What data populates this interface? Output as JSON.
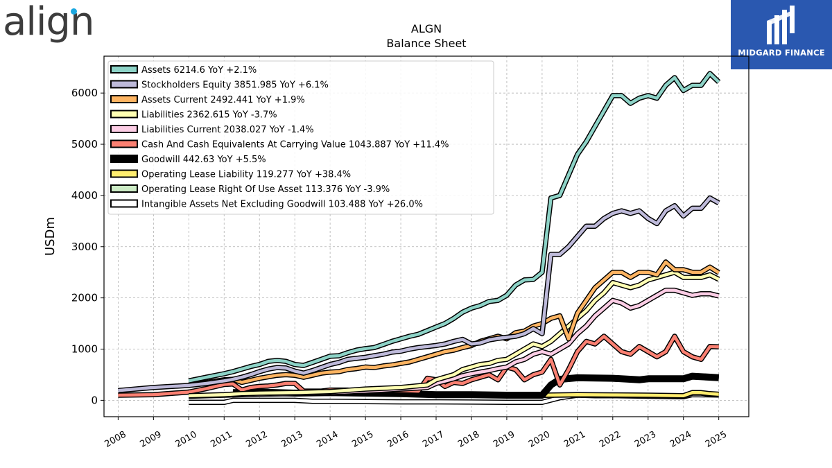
{
  "brand": {
    "logo_text": "align"
  },
  "badge": {
    "text": "MIDGARD FINANCE"
  },
  "chart_data": {
    "type": "line",
    "title": "ALGN",
    "subtitle": "Balance  Sheet",
    "ylabel": "USDm",
    "xlabel": "",
    "xlim": [
      2007.6,
      2025.85
    ],
    "ylim": [
      -320,
      6720
    ],
    "yticks": [
      0,
      1000,
      2000,
      3000,
      4000,
      5000,
      6000
    ],
    "xticks": [
      "2008",
      "2009",
      "2010",
      "2011",
      "2012",
      "2013",
      "2014",
      "2015",
      "2016",
      "2017",
      "2018",
      "2019",
      "2020",
      "2021",
      "2022",
      "2023",
      "2024",
      "2025"
    ],
    "grid": true,
    "legend_position": "top-left",
    "series": [
      {
        "name": "Assets  6214.6 YoY +2.1%",
        "color": "#8dd3c7",
        "width": 4.5,
        "x": [
          2010,
          2010.5,
          2011,
          2011.25,
          2011.5,
          2011.75,
          2012,
          2012.25,
          2012.5,
          2012.75,
          2013,
          2013.25,
          2013.5,
          2013.75,
          2014,
          2014.25,
          2014.5,
          2014.75,
          2015,
          2015.25,
          2015.5,
          2015.75,
          2016,
          2016.25,
          2016.5,
          2016.75,
          2017,
          2017.25,
          2017.5,
          2017.75,
          2018,
          2018.25,
          2018.5,
          2018.75,
          2019,
          2019.25,
          2019.5,
          2019.75,
          2020,
          2020.25,
          2020.5,
          2020.75,
          2021,
          2021.25,
          2021.5,
          2021.75,
          2022,
          2022.25,
          2022.5,
          2022.75,
          2023,
          2023.25,
          2023.5,
          2023.75,
          2024,
          2024.25,
          2024.5,
          2024.75,
          2025
        ],
        "y": [
          380,
          450,
          520,
          560,
          610,
          660,
          700,
          760,
          780,
          760,
          700,
          680,
          740,
          800,
          860,
          870,
          930,
          980,
          1010,
          1030,
          1090,
          1150,
          1200,
          1250,
          1290,
          1360,
          1430,
          1500,
          1600,
          1720,
          1800,
          1850,
          1930,
          1950,
          2050,
          2250,
          2350,
          2360,
          2500,
          3950,
          4000,
          4400,
          4800,
          5050,
          5350,
          5650,
          5950,
          5950,
          5800,
          5900,
          5950,
          5900,
          6150,
          6300,
          6050,
          6150,
          6150,
          6380,
          6214.6
        ]
      },
      {
        "name": "Stockholders Equity  3851.985 YoY +6.1%",
        "color": "#bebada",
        "width": 4.5,
        "x": [
          2008,
          2009,
          2010,
          2010.5,
          2011,
          2011.25,
          2011.5,
          2011.75,
          2012,
          2012.25,
          2012.5,
          2012.75,
          2013,
          2013.25,
          2013.5,
          2013.75,
          2014,
          2014.25,
          2014.5,
          2014.75,
          2015,
          2015.25,
          2015.5,
          2015.75,
          2016,
          2016.25,
          2016.5,
          2016.75,
          2017,
          2017.25,
          2017.5,
          2017.75,
          2018,
          2018.25,
          2018.5,
          2018.75,
          2019,
          2019.25,
          2019.5,
          2019.75,
          2020,
          2020.25,
          2020.5,
          2020.75,
          2021,
          2021.25,
          2021.5,
          2021.75,
          2022,
          2022.25,
          2022.5,
          2022.75,
          2023,
          2023.25,
          2023.5,
          2023.75,
          2024,
          2024.25,
          2024.5,
          2024.75,
          2025
        ],
        "y": [
          190,
          250,
          290,
          330,
          380,
          410,
          450,
          500,
          560,
          610,
          640,
          630,
          570,
          530,
          580,
          640,
          700,
          740,
          800,
          820,
          840,
          870,
          900,
          940,
          960,
          1000,
          1030,
          1050,
          1070,
          1100,
          1150,
          1190,
          1100,
          1120,
          1180,
          1210,
          1230,
          1250,
          1300,
          1400,
          1300,
          2850,
          2850,
          3000,
          3200,
          3400,
          3400,
          3550,
          3650,
          3700,
          3650,
          3700,
          3550,
          3450,
          3700,
          3800,
          3600,
          3750,
          3750,
          3950,
          3851.985
        ]
      },
      {
        "name": "Assets Current  2492.441 YoY +1.9%",
        "color": "#fdb462",
        "width": 4.5,
        "x": [
          2010,
          2010.5,
          2011,
          2011.25,
          2011.5,
          2011.75,
          2012,
          2012.25,
          2012.5,
          2012.75,
          2013,
          2013.25,
          2013.5,
          2013.75,
          2014,
          2014.25,
          2014.5,
          2014.75,
          2015,
          2015.25,
          2015.5,
          2015.75,
          2016,
          2016.25,
          2016.5,
          2016.75,
          2017,
          2017.25,
          2017.5,
          2017.75,
          2018,
          2018.25,
          2018.5,
          2018.75,
          2019,
          2019.25,
          2019.5,
          2019.75,
          2020,
          2020.25,
          2020.5,
          2020.75,
          2021,
          2021.25,
          2021.5,
          2021.75,
          2022,
          2022.25,
          2022.5,
          2022.75,
          2023,
          2023.25,
          2023.5,
          2023.75,
          2024,
          2024.25,
          2024.5,
          2024.75,
          2025
        ],
        "y": [
          300,
          350,
          400,
          410,
          350,
          390,
          430,
          460,
          490,
          500,
          490,
          450,
          490,
          530,
          550,
          560,
          600,
          620,
          650,
          640,
          670,
          690,
          720,
          750,
          800,
          850,
          900,
          950,
          980,
          1030,
          1070,
          1150,
          1200,
          1250,
          1200,
          1320,
          1350,
          1450,
          1500,
          1600,
          1650,
          1200,
          1700,
          1950,
          2200,
          2350,
          2500,
          2500,
          2400,
          2500,
          2500,
          2450,
          2700,
          2550,
          2550,
          2500,
          2500,
          2600,
          2492.441
        ]
      },
      {
        "name": "Liabilities  2362.615 YoY -3.7%",
        "color": "#ffffb3",
        "width": 4.5,
        "x": [
          2010,
          2011,
          2011.5,
          2012,
          2013,
          2014,
          2015,
          2016,
          2016.75,
          2017,
          2017.5,
          2017.75,
          2018,
          2018.25,
          2018.5,
          2018.75,
          2019,
          2019.25,
          2019.5,
          2019.75,
          2020,
          2020.25,
          2020.5,
          2020.75,
          2021,
          2021.25,
          2021.5,
          2021.75,
          2022,
          2022.25,
          2022.5,
          2022.75,
          2023,
          2023.25,
          2023.5,
          2023.75,
          2024,
          2024.25,
          2024.5,
          2024.75,
          2025
        ],
        "y": [
          90,
          110,
          130,
          140,
          150,
          170,
          220,
          250,
          300,
          400,
          500,
          600,
          650,
          700,
          720,
          780,
          800,
          900,
          1000,
          1100,
          1050,
          1150,
          1300,
          1450,
          1600,
          1750,
          1950,
          2100,
          2300,
          2250,
          2200,
          2250,
          2350,
          2400,
          2450,
          2500,
          2400,
          2400,
          2400,
          2450,
          2362.615
        ]
      },
      {
        "name": "Liabilities Current  2038.027 YoY -1.4%",
        "color": "#fccde5",
        "width": 4.5,
        "x": [
          2010,
          2011,
          2012,
          2013,
          2014,
          2015,
          2016,
          2016.75,
          2017,
          2017.5,
          2017.75,
          2018,
          2018.25,
          2018.5,
          2018.75,
          2019,
          2019.25,
          2019.5,
          2019.75,
          2020,
          2020.25,
          2020.5,
          2020.75,
          2021,
          2021.25,
          2021.5,
          2021.75,
          2022,
          2022.25,
          2022.5,
          2022.75,
          2023,
          2023.25,
          2023.5,
          2023.75,
          2024,
          2024.25,
          2024.5,
          2024.75,
          2025
        ],
        "y": [
          80,
          100,
          120,
          130,
          150,
          180,
          220,
          250,
          330,
          420,
          480,
          520,
          550,
          580,
          620,
          650,
          750,
          800,
          900,
          950,
          900,
          1000,
          1100,
          1300,
          1450,
          1650,
          1800,
          1950,
          1900,
          1800,
          1850,
          1950,
          2050,
          2150,
          2150,
          2100,
          2050,
          2080,
          2080,
          2038.027
        ]
      },
      {
        "name": "Cash And Cash Equivalents At Carrying Value  1043.887 YoY +11.4%",
        "color": "#fb8072",
        "width": 4.5,
        "x": [
          2008,
          2009,
          2010,
          2010.5,
          2011,
          2011.25,
          2011.5,
          2011.75,
          2012,
          2012.25,
          2012.5,
          2012.75,
          2013,
          2013.25,
          2013.5,
          2013.75,
          2014,
          2014.25,
          2014.5,
          2014.75,
          2015,
          2015.5,
          2016,
          2016.5,
          2016.75,
          2017,
          2017.25,
          2017.5,
          2017.75,
          2018,
          2018.25,
          2018.5,
          2018.75,
          2019,
          2019.25,
          2019.5,
          2019.75,
          2020,
          2020.25,
          2020.5,
          2020.75,
          2021,
          2021.25,
          2021.5,
          2021.75,
          2022,
          2022.25,
          2022.5,
          2022.75,
          2023,
          2023.25,
          2023.5,
          2023.75,
          2024,
          2024.25,
          2024.5,
          2024.75,
          2025
        ],
        "y": [
          100,
          110,
          160,
          230,
          310,
          320,
          200,
          250,
          270,
          280,
          300,
          330,
          330,
          180,
          180,
          180,
          200,
          200,
          200,
          170,
          200,
          190,
          190,
          180,
          430,
          400,
          270,
          350,
          330,
          400,
          450,
          500,
          400,
          650,
          600,
          400,
          500,
          550,
          800,
          300,
          600,
          950,
          1150,
          1100,
          1250,
          1100,
          950,
          900,
          1050,
          950,
          850,
          950,
          1250,
          950,
          850,
          800,
          1050,
          1043.887
        ]
      },
      {
        "name": "Goodwill  442.63 YoY +5.5%",
        "color": "#000000",
        "width": 7,
        "x": [
          2011.25,
          2012,
          2013,
          2014,
          2015,
          2016,
          2017,
          2018,
          2019,
          2020,
          2020.25,
          2020.5,
          2021,
          2022,
          2022.75,
          2023,
          2024,
          2024.25,
          2025
        ],
        "y": [
          150,
          160,
          140,
          150,
          140,
          130,
          110,
          110,
          100,
          100,
          300,
          410,
          440,
          430,
          400,
          420,
          420,
          470,
          442.63
        ]
      },
      {
        "name": "Operating Lease Liability  119.277 YoY +38.4%",
        "color": "#ffed6f",
        "width": 4.5,
        "x": [
          2019,
          2019.5,
          2020,
          2021,
          2022,
          2023,
          2024,
          2024.25,
          2024.5,
          2024.75,
          2025
        ],
        "y": [
          90,
          95,
          100,
          110,
          105,
          100,
          90,
          150,
          150,
          130,
          119.277
        ]
      },
      {
        "name": "Operating Lease Right Of Use Asset  113.376 YoY -3.9%",
        "color": "#ccebc5",
        "width": 4.5,
        "x": [
          2019,
          2019.5,
          2020,
          2021,
          2022,
          2023,
          2024,
          2024.25,
          2024.5,
          2024.75,
          2025
        ],
        "y": [
          85,
          90,
          95,
          105,
          100,
          95,
          85,
          140,
          140,
          120,
          113.376
        ]
      },
      {
        "name": "Intangible Assets Net Excluding Goodwill  103.488 YoY +26.0%",
        "color": "#ffffff",
        "width": 4.5,
        "x": [
          2010,
          2011,
          2011.25,
          2012,
          2013,
          2013.5,
          2014,
          2015,
          2016,
          2017,
          2018,
          2019,
          2020,
          2020.5,
          2021,
          2021.5,
          2022,
          2023,
          2024,
          2024.25,
          2025
        ],
        "y": [
          -40,
          -40,
          0,
          0,
          0,
          -20,
          -20,
          -25,
          -30,
          -30,
          -35,
          -40,
          -40,
          50,
          100,
          90,
          90,
          80,
          70,
          110,
          103.488
        ]
      }
    ]
  }
}
